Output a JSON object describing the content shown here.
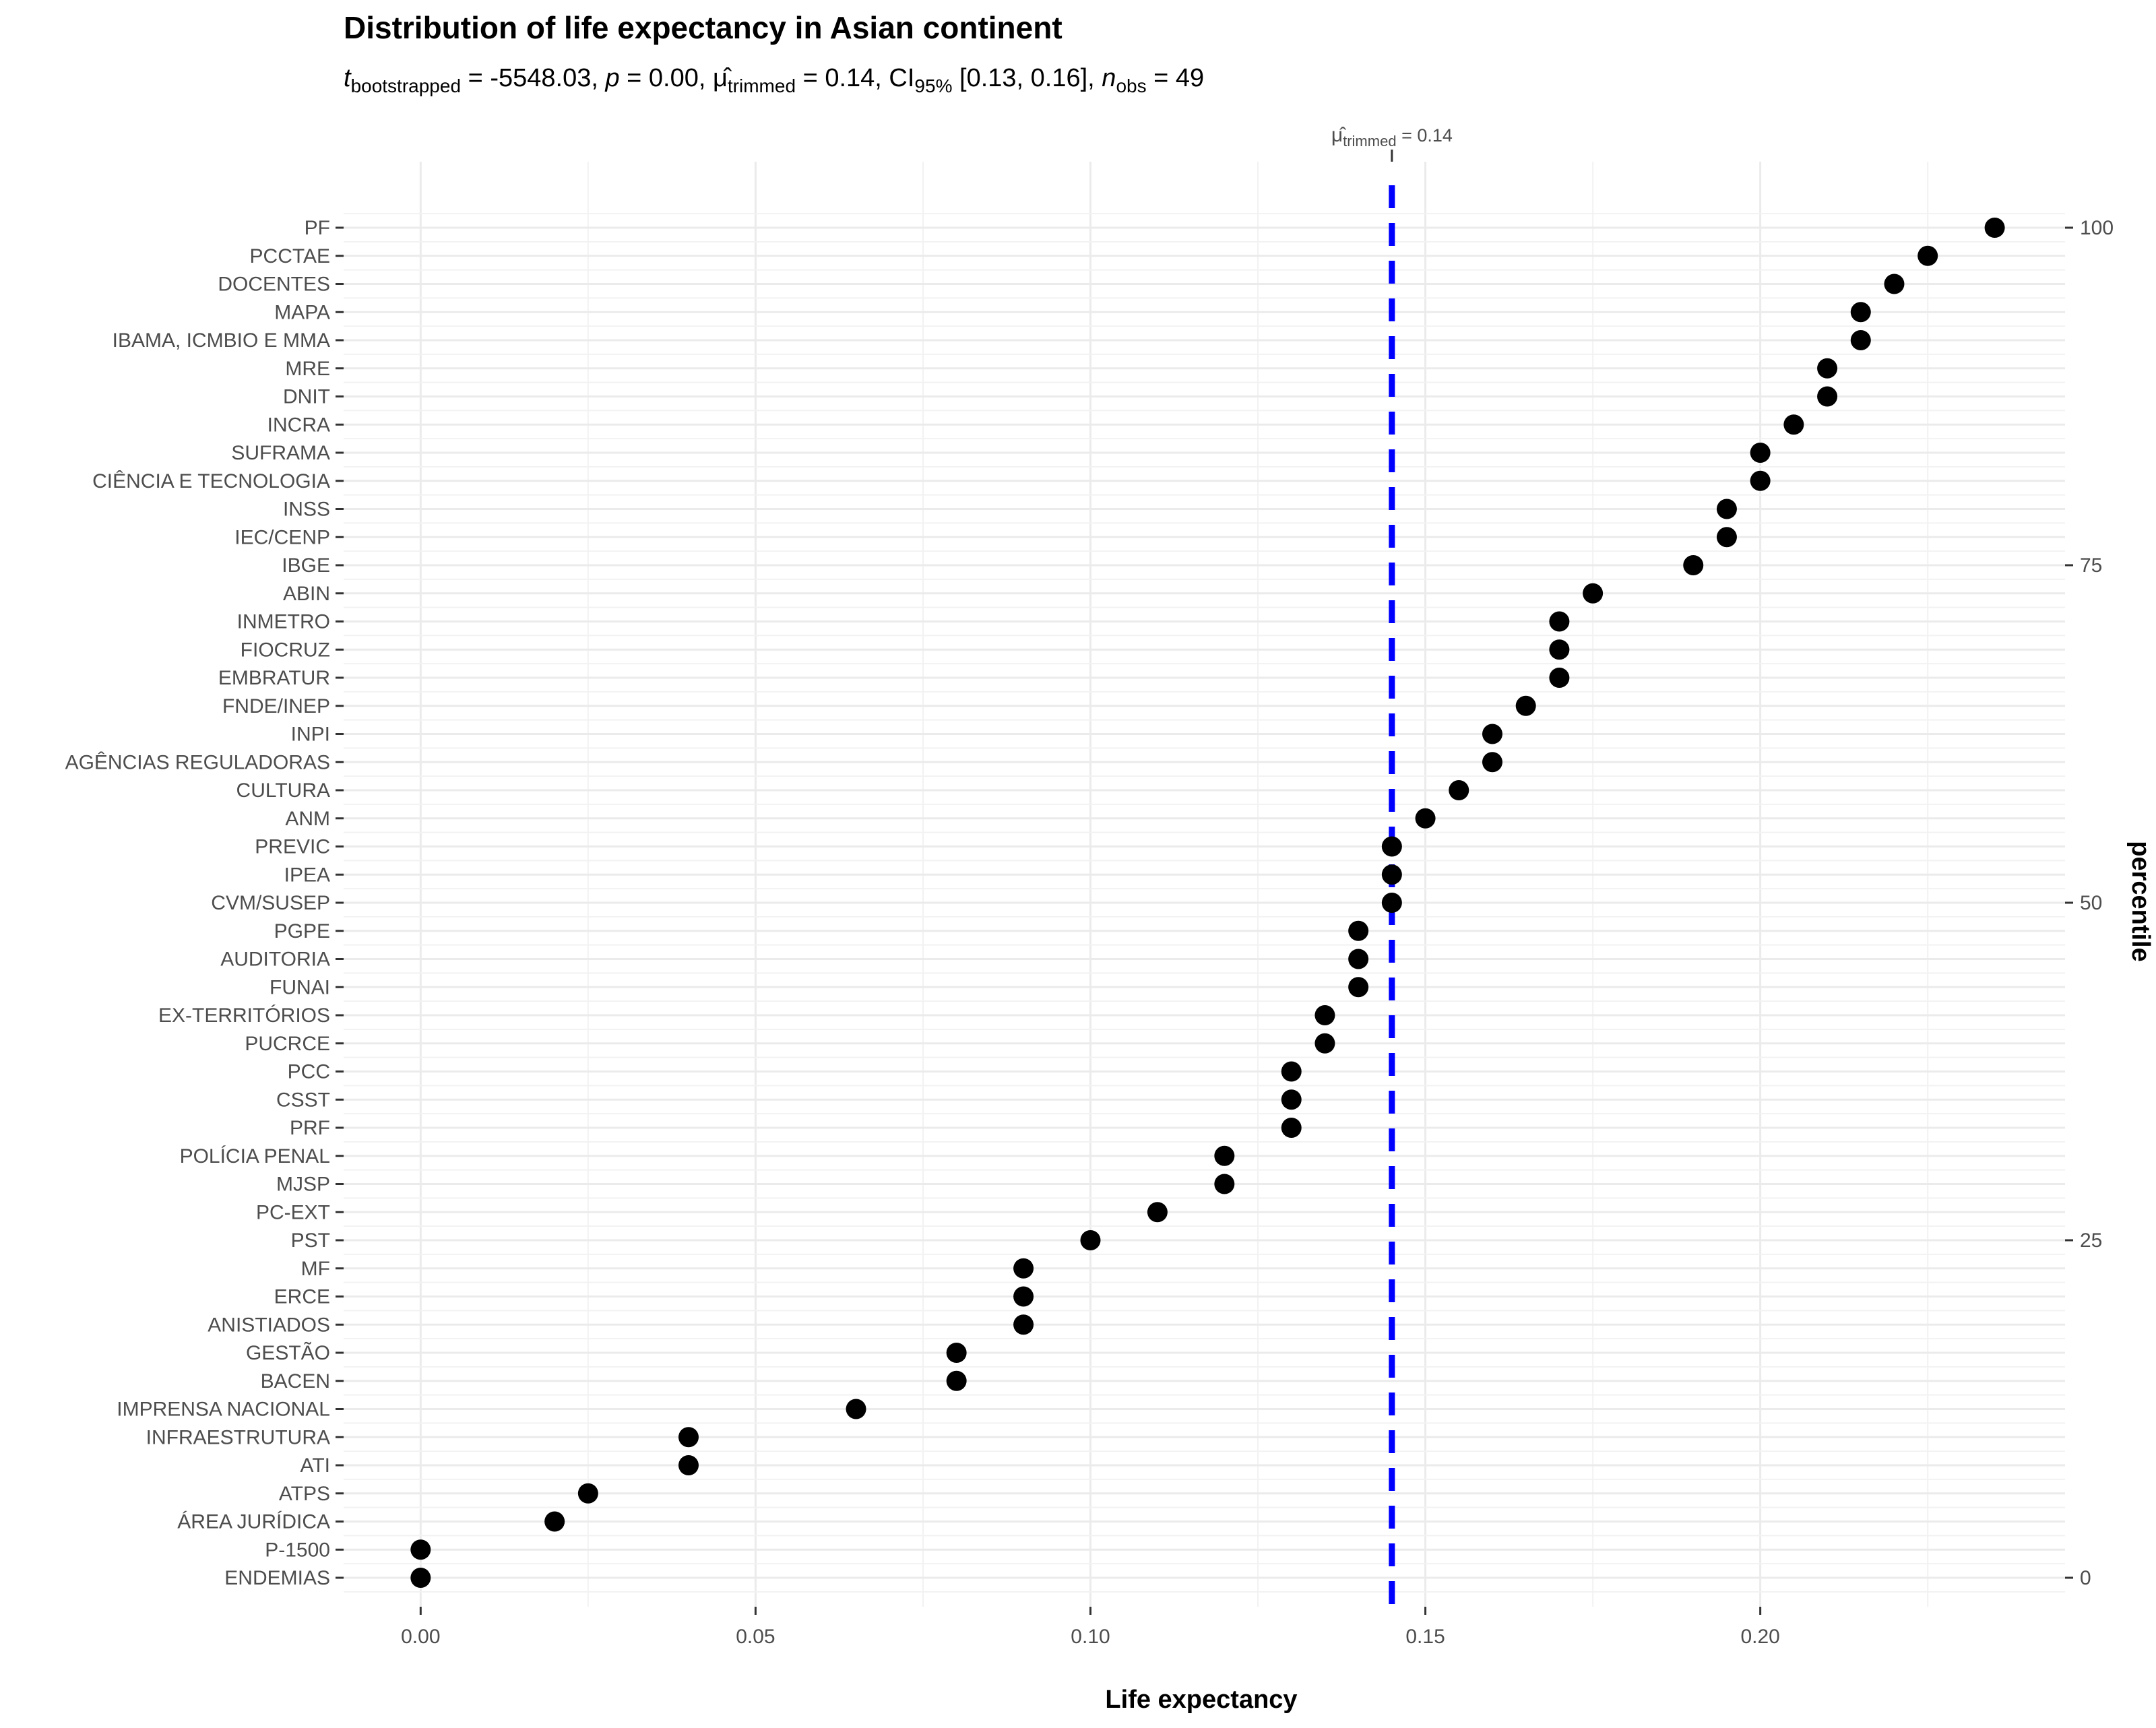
{
  "chart_data": {
    "type": "scatter",
    "title": "Distribution of life expectancy in Asian continent",
    "subtitle": {
      "t_label": "t",
      "t_sub": "bootstrapped",
      "t_value": " = -5548.03, ",
      "p_label": "p",
      "p_value": " = 0.00, ",
      "mu_label": "μ̂",
      "mu_sub": "trimmed",
      "mu_value": " = 0.14, CI",
      "ci_sub": "95%",
      "ci_value": " [0.13, 0.16], ",
      "n_label": "n",
      "n_sub": "obs",
      "n_value": " = 49"
    },
    "xlabel": "Life expectancy",
    "secondary_ylabel": "percentile",
    "xlim": [
      -0.0115,
      0.2455
    ],
    "x_ticks": [
      0.0,
      0.05,
      0.1,
      0.15,
      0.2
    ],
    "x_tick_labels": [
      "0.00",
      "0.05",
      "0.10",
      "0.15",
      "0.20"
    ],
    "percentile_ticks": [
      0,
      25,
      50,
      75,
      100
    ],
    "percentile_tick_labels": [
      "0",
      "25",
      "50",
      "75",
      "100"
    ],
    "reference_line": {
      "x": 0.145,
      "label_mu": "μ̂",
      "label_sub": "trimmed",
      "label_value": " = 0.14",
      "color": "#0000ff"
    },
    "point_color": "#000000",
    "grid": true,
    "categories": [
      "ENDEMIAS",
      "P-1500",
      "ÁREA JURÍDICA",
      "ATPS",
      "ATI",
      "INFRAESTRUTURA",
      "IMPRENSA NACIONAL",
      "BACEN",
      "GESTÃO",
      "ANISTIADOS",
      "ERCE",
      "MF",
      "PST",
      "PC-EXT",
      "MJSP",
      "POLÍCIA PENAL",
      "PRF",
      "CSST",
      "PCC",
      "PUCRCE",
      "EX-TERRITÓRIOS",
      "FUNAI",
      "AUDITORIA",
      "PGPE",
      "CVM/SUSEP",
      "IPEA",
      "PREVIC",
      "ANM",
      "CULTURA",
      "AGÊNCIAS REGULADORAS",
      "INPI",
      "FNDE/INEP",
      "EMBRATUR",
      "FIOCRUZ",
      "INMETRO",
      "ABIN",
      "IBGE",
      "IEC/CENP",
      "INSS",
      "CIÊNCIA E TECNOLOGIA",
      "SUFRAMA",
      "INCRA",
      "DNIT",
      "MRE",
      "IBAMA, ICMBIO E MMA",
      "MAPA",
      "DOCENTES",
      "PCCTAE",
      "PF"
    ],
    "values": [
      0.0,
      0.0,
      0.02,
      0.025,
      0.04,
      0.04,
      0.065,
      0.08,
      0.08,
      0.09,
      0.09,
      0.09,
      0.1,
      0.11,
      0.12,
      0.12,
      0.13,
      0.13,
      0.13,
      0.135,
      0.135,
      0.14,
      0.14,
      0.14,
      0.145,
      0.145,
      0.145,
      0.15,
      0.155,
      0.16,
      0.16,
      0.165,
      0.17,
      0.17,
      0.17,
      0.175,
      0.19,
      0.195,
      0.195,
      0.2,
      0.2,
      0.205,
      0.21,
      0.21,
      0.215,
      0.215,
      0.22,
      0.225,
      0.235
    ]
  }
}
